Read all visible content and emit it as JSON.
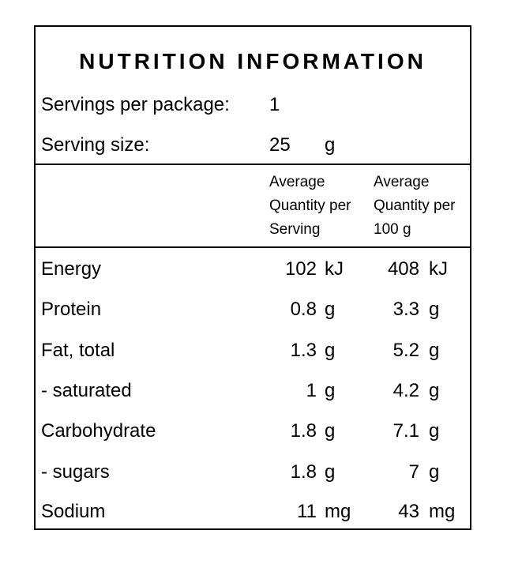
{
  "title": "NUTRITION INFORMATION",
  "servings_per_package": {
    "label": "Servings per package:",
    "value": "1"
  },
  "serving_size": {
    "label": "Serving size:",
    "value": "25",
    "unit": "g"
  },
  "columns": {
    "per_serving": [
      "Average",
      "Quantity per",
      "Serving"
    ],
    "per_100g": [
      "Average",
      "Quantity per",
      "100 g"
    ]
  },
  "rows": [
    {
      "name": "Energy",
      "serving_value": "102",
      "serving_unit": "kJ",
      "per100_value": "408",
      "per100_unit": "kJ"
    },
    {
      "name": "Protein",
      "serving_value": "0.8",
      "serving_unit": "g",
      "per100_value": "3.3",
      "per100_unit": "g"
    },
    {
      "name": "Fat, total",
      "serving_value": "1.3",
      "serving_unit": "g",
      "per100_value": "5.2",
      "per100_unit": "g"
    },
    {
      "name": "- saturated",
      "serving_value": "1",
      "serving_unit": "g",
      "per100_value": "4.2",
      "per100_unit": "g"
    },
    {
      "name": "Carbohydrate",
      "serving_value": "1.8",
      "serving_unit": "g",
      "per100_value": "7.1",
      "per100_unit": "g"
    },
    {
      "name": "- sugars",
      "serving_value": "1.8",
      "serving_unit": "g",
      "per100_value": "7",
      "per100_unit": "g"
    },
    {
      "name": "Sodium",
      "serving_value": "11",
      "serving_unit": "mg",
      "per100_value": "43",
      "per100_unit": "mg"
    }
  ]
}
